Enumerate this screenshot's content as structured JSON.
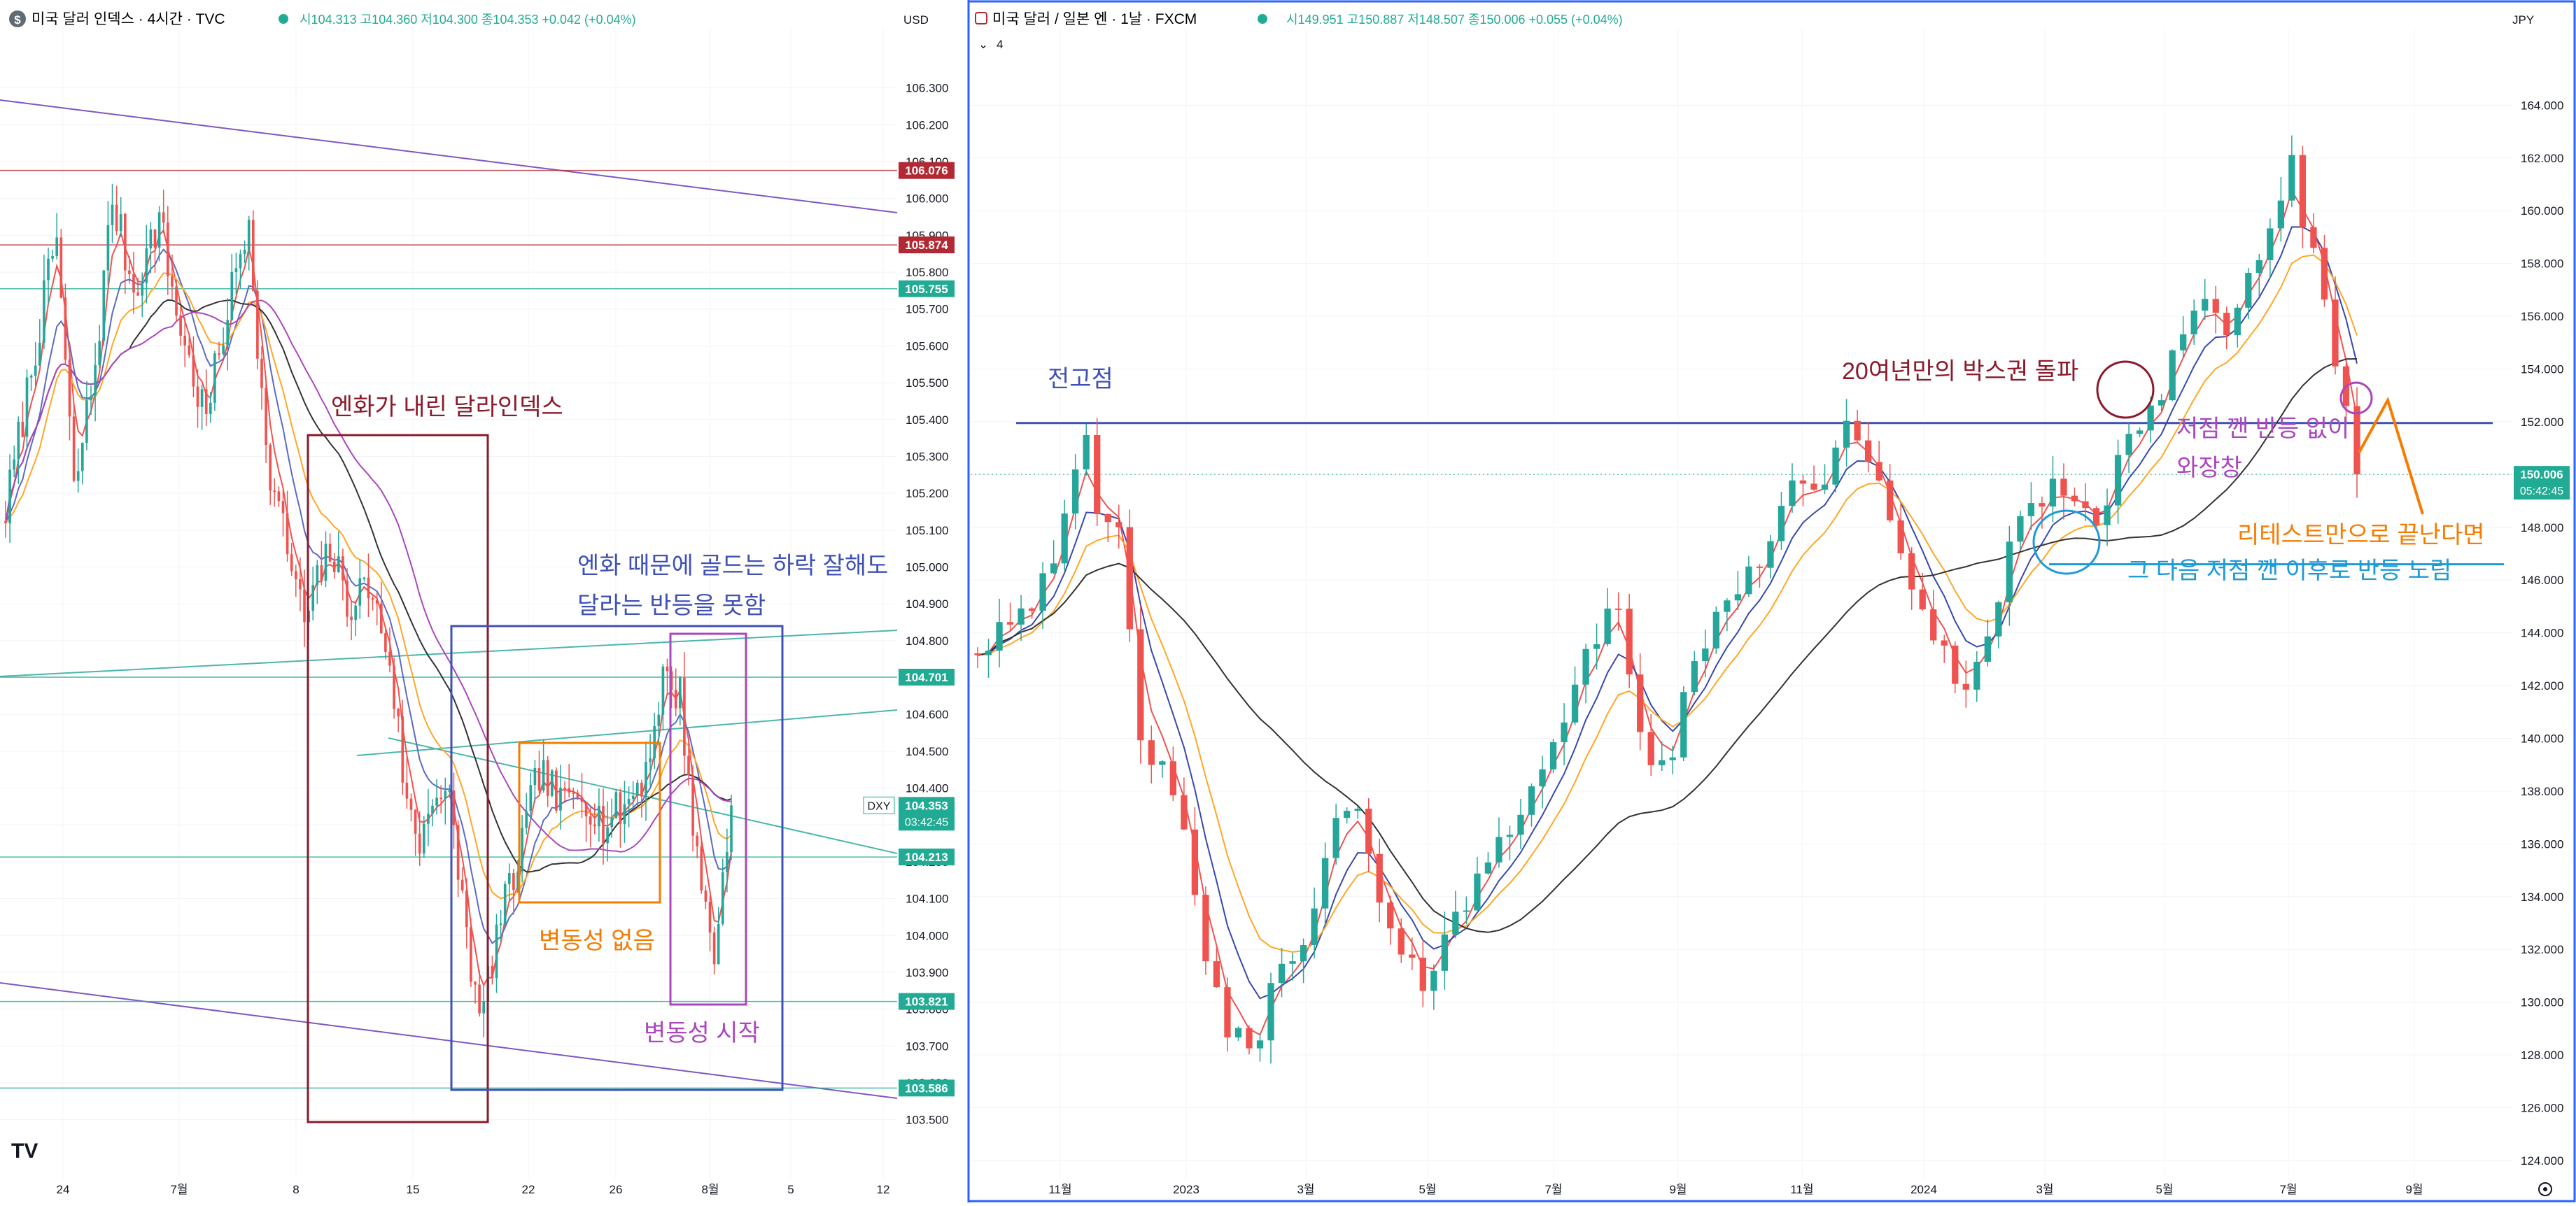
{
  "left_panel": {
    "logo_letter": "$",
    "symbol_title": "미국 달러 인덱스 · 4시간 · TVC",
    "ohlc": {
      "o_label": "시",
      "o": "104.313",
      "h_label": "고",
      "h": "104.360",
      "l_label": "저",
      "l": "104.300",
      "c_label": "종",
      "c": "104.353",
      "change": "+0.042 (+0.04%)"
    },
    "currency": "USD",
    "price_badges": [
      {
        "value": 106.076,
        "text": "106.076",
        "color": "#b22833"
      },
      {
        "value": 105.874,
        "text": "105.874",
        "color": "#b22833"
      },
      {
        "value": 105.755,
        "text": "105.755",
        "color": "#22ab94"
      },
      {
        "value": 104.701,
        "text": "104.701",
        "color": "#22ab94"
      },
      {
        "value": 104.213,
        "text": "104.213",
        "color": "#22ab94"
      },
      {
        "value": 103.821,
        "text": "103.821",
        "color": "#22ab94"
      },
      {
        "value": 103.586,
        "text": "103.586",
        "color": "#22ab94"
      }
    ],
    "last_price": {
      "symbol_tag": "DXY",
      "value": 104.353,
      "text": "104.353",
      "countdown": "03:42:45",
      "color": "#22ab94"
    },
    "time_axis": [
      "24",
      "7월",
      "8",
      "15",
      "22",
      "26",
      "8월",
      "5",
      "12"
    ],
    "logo_text": "TV",
    "annotations": [
      {
        "text": "엔화가 내린 달라인덱스",
        "color": "#8b1a2b"
      },
      {
        "text": "엔화 때문에 골드는 하락 잘해도",
        "color": "#3f51b5"
      },
      {
        "text": "달라는 반등을 못함",
        "color": "#3f51b5"
      },
      {
        "text": "변동성 없음",
        "color": "#f57c00"
      },
      {
        "text": "변동성 시작",
        "color": "#ab47bc"
      }
    ]
  },
  "right_panel": {
    "symbol_title": "미국 달러 / 일본 엔 · 1날 · FXCM",
    "ohlc": {
      "o_label": "시",
      "o": "149.951",
      "h_label": "고",
      "h": "150.887",
      "l_label": "저",
      "l": "148.507",
      "c_label": "종",
      "c": "150.006",
      "change": "+0.055 (+0.04%)"
    },
    "indicator_count": "4",
    "currency": "JPY",
    "last_price": {
      "value": 150.006,
      "text": "150.006",
      "countdown": "05:42:45",
      "color": "#22ab94"
    },
    "time_axis": [
      "11월",
      "2023",
      "3월",
      "5월",
      "7월",
      "9월",
      "11월",
      "2024",
      "3월",
      "5월",
      "7월",
      "9월"
    ],
    "annotations": [
      {
        "text": "전고점",
        "color": "#3f51b5"
      },
      {
        "text": "20여년만의 박스권 돌파",
        "color": "#8b1a2b"
      },
      {
        "text": "저점 깬 반등 없이",
        "color": "#ab47bc"
      },
      {
        "text": "와장창",
        "color": "#ab47bc"
      },
      {
        "text": "리테스트만으로 끝난다면",
        "color": "#f57c00"
      },
      {
        "text": "그 다음 저점 깬 이후로 반등 노림",
        "color": "#1e9ad6"
      }
    ]
  },
  "chart_data": [
    {
      "type": "candlestick",
      "title": "미국 달러 인덱스 · 4시간 · TVC",
      "ylabel": "USD",
      "ylim": [
        103.45,
        106.4
      ],
      "y_ticks": [
        106.3,
        106.2,
        106.1,
        106.0,
        105.9,
        105.8,
        105.7,
        105.6,
        105.5,
        105.4,
        105.3,
        105.2,
        105.1,
        105.0,
        104.9,
        104.8,
        104.7,
        104.6,
        104.5,
        104.4,
        104.3,
        104.2,
        104.1,
        104.0,
        103.9,
        103.8,
        103.7,
        103.6,
        103.5
      ],
      "categories": [
        "24",
        "7월",
        "8",
        "15",
        "22",
        "26",
        "8월",
        "5",
        "12"
      ],
      "close_path": [
        [
          0,
          105.15
        ],
        [
          7,
          105.6
        ],
        [
          12,
          105.9
        ],
        [
          16,
          105.2
        ],
        [
          21,
          105.55
        ],
        [
          25,
          106.0
        ],
        [
          30,
          105.75
        ],
        [
          36,
          105.95
        ],
        [
          39,
          105.75
        ],
        [
          43,
          105.55
        ],
        [
          47,
          105.4
        ],
        [
          52,
          105.7
        ],
        [
          57,
          105.95
        ],
        [
          61,
          105.3
        ],
        [
          65,
          105.1
        ],
        [
          70,
          104.85
        ],
        [
          76,
          105.05
        ],
        [
          80,
          104.9
        ],
        [
          85,
          104.95
        ],
        [
          90,
          104.75
        ],
        [
          94,
          104.35
        ],
        [
          97,
          104.25
        ],
        [
          100,
          104.4
        ],
        [
          104,
          104.35
        ],
        [
          107,
          104.1
        ],
        [
          111,
          103.75
        ],
        [
          115,
          104.0
        ],
        [
          120,
          104.2
        ],
        [
          125,
          104.45
        ],
        [
          130,
          104.35
        ],
        [
          135,
          104.4
        ],
        [
          140,
          104.3
        ],
        [
          145,
          104.35
        ],
        [
          150,
          104.45
        ],
        [
          154,
          104.7
        ],
        [
          158,
          104.65
        ],
        [
          162,
          104.2
        ],
        [
          166,
          103.95
        ],
        [
          170,
          104.35
        ]
      ],
      "price_lines": [
        106.076,
        105.874,
        105.755,
        104.701,
        104.213,
        103.821,
        103.586
      ],
      "last_price": 104.353
    },
    {
      "type": "candlestick",
      "title": "미국 달러 / 일본 엔 · 1날 · FXCM",
      "ylabel": "JPY",
      "ylim": [
        123.6,
        165.6
      ],
      "y_ticks": [
        164,
        162,
        160,
        158,
        156,
        154,
        152,
        150,
        148,
        146,
        144,
        142,
        140,
        138,
        136,
        134,
        132,
        130,
        128,
        126,
        124
      ],
      "categories": [
        "11월",
        "2023",
        "3월",
        "5월",
        "7월",
        "9월",
        "11월",
        "2024",
        "3월",
        "5월",
        "7월",
        "9월"
      ],
      "close_path": [
        [
          0,
          143.5
        ],
        [
          5,
          145.5
        ],
        [
          8,
          148.0
        ],
        [
          10,
          151.0
        ],
        [
          11,
          148.5
        ],
        [
          13,
          147.5
        ],
        [
          15,
          140.5
        ],
        [
          17,
          138.5
        ],
        [
          19,
          136.0
        ],
        [
          21,
          132.0
        ],
        [
          23,
          129.0
        ],
        [
          25,
          127.8
        ],
        [
          28,
          131.5
        ],
        [
          31,
          133.5
        ],
        [
          33,
          136.5
        ],
        [
          35,
          137.5
        ],
        [
          37,
          133.5
        ],
        [
          39,
          131.5
        ],
        [
          41,
          130.5
        ],
        [
          43,
          133.0
        ],
        [
          46,
          134.5
        ],
        [
          49,
          136.5
        ],
        [
          52,
          139.5
        ],
        [
          55,
          141.5
        ],
        [
          57,
          144.0
        ],
        [
          59,
          144.8
        ],
        [
          61,
          140.5
        ],
        [
          63,
          138.5
        ],
        [
          66,
          142.5
        ],
        [
          69,
          145.5
        ],
        [
          72,
          147.0
        ],
        [
          75,
          149.5
        ],
        [
          78,
          150.0
        ],
        [
          80,
          151.5
        ],
        [
          82,
          150.2
        ],
        [
          85,
          147.5
        ],
        [
          88,
          143.5
        ],
        [
          91,
          141.5
        ],
        [
          93,
          144.5
        ],
        [
          95,
          147.0
        ],
        [
          97,
          148.5
        ],
        [
          99,
          150.0
        ],
        [
          101,
          149.0
        ],
        [
          103,
          147.5
        ],
        [
          105,
          151.0
        ],
        [
          107,
          152.0
        ],
        [
          109,
          153.5
        ],
        [
          111,
          155.5
        ],
        [
          113,
          157.0
        ],
        [
          115,
          155.0
        ],
        [
          117,
          157.5
        ],
        [
          119,
          159.5
        ],
        [
          121,
          161.5
        ],
        [
          123,
          158.0
        ],
        [
          125,
          154.0
        ],
        [
          126,
          152.0
        ],
        [
          127,
          150.0
        ]
      ],
      "horizontal_levels": [
        {
          "label": "전고점",
          "value": 151.95
        },
        {
          "value": 146.6
        }
      ],
      "last_price": 150.006
    }
  ]
}
